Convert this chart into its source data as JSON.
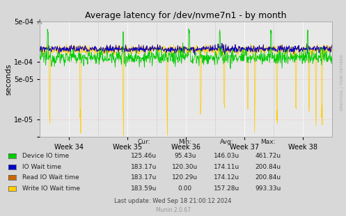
{
  "title": "Average latency for /dev/nvme7n1 - by month",
  "ylabel": "seconds",
  "xlabel_ticks": [
    "Week 34",
    "Week 35",
    "Week 36",
    "Week 37",
    "Week 38"
  ],
  "ylim_log_min": 5e-06,
  "ylim_log_max": 0.0005,
  "bg_color": "#d8d8d8",
  "plot_bg_color": "#e8e8e8",
  "grid_color_solid": "#ffffff",
  "grid_color_dotted": "#ffcccc",
  "line_colors": {
    "device_io": "#00cc00",
    "io_wait": "#0000cc",
    "read_io_wait": "#cc6600",
    "write_io_wait": "#ffcc00"
  },
  "legend": [
    {
      "label": "Device IO time",
      "color": "#00cc00"
    },
    {
      "label": "IO Wait time",
      "color": "#0000cc"
    },
    {
      "label": "Read IO Wait time",
      "color": "#cc6600"
    },
    {
      "label": "Write IO Wait time",
      "color": "#ffcc00"
    }
  ],
  "stats_header": [
    "Cur:",
    "Min:",
    "Avg:",
    "Max:"
  ],
  "stats": [
    [
      "125.46u",
      "95.43u",
      "146.03u",
      "461.72u"
    ],
    [
      "183.17u",
      "120.30u",
      "174.11u",
      "200.84u"
    ],
    [
      "183.17u",
      "120.29u",
      "174.12u",
      "200.84u"
    ],
    [
      "183.59u",
      "0.00",
      "157.28u",
      "993.33u"
    ]
  ],
  "footer": "Last update: Wed Sep 18 21:00:12 2024",
  "munin_version": "Munin 2.0.67",
  "watermark": "RRDTOOL / TOBI OETIKER"
}
